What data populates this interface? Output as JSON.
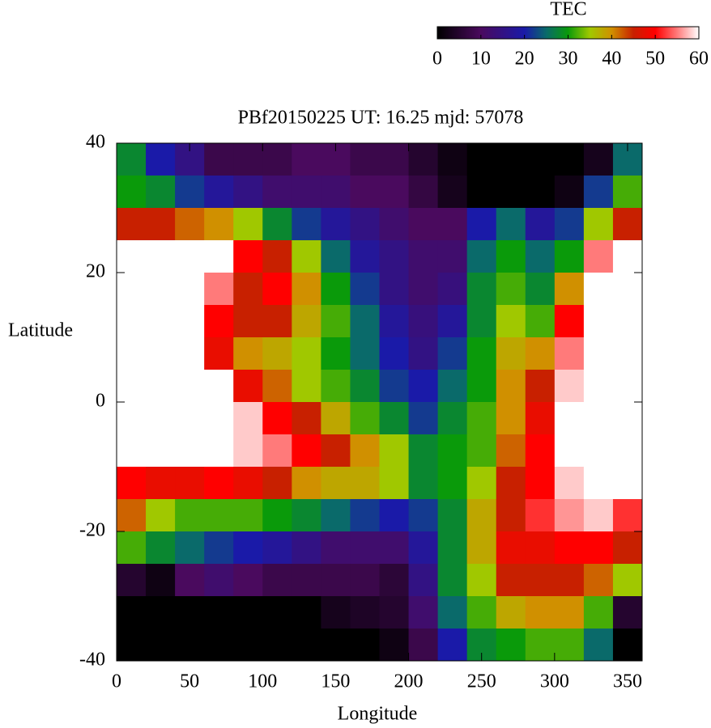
{
  "chart_data": {
    "type": "heatmap",
    "title": "PBf20150225  UT: 16.25  mjd: 57078",
    "x_label": "Longitude",
    "y_label": "Latitude",
    "colorbar_label": "TEC",
    "xlim": [
      0,
      360
    ],
    "ylim": [
      -40,
      40
    ],
    "xticks": [
      0,
      50,
      100,
      150,
      200,
      250,
      300,
      350
    ],
    "yticks": [
      -40,
      -20,
      0,
      20,
      40
    ],
    "clim": [
      0,
      60
    ],
    "cticks": [
      0,
      10,
      20,
      30,
      40,
      50,
      60
    ],
    "colorscale": [
      [
        0,
        "#000000"
      ],
      [
        10,
        "#4a0a5e"
      ],
      [
        20,
        "#1a1aa8"
      ],
      [
        25,
        "#0a6a6a"
      ],
      [
        30,
        "#0a9a0a"
      ],
      [
        35,
        "#a0c800"
      ],
      [
        40,
        "#d09000"
      ],
      [
        45,
        "#c82000"
      ],
      [
        50,
        "#ff0000"
      ],
      [
        55,
        "#ff7a7a"
      ],
      [
        60,
        "#ffffff"
      ]
    ],
    "x": [
      10,
      30,
      50,
      70,
      90,
      110,
      130,
      150,
      170,
      190,
      210,
      230,
      250,
      270,
      290,
      310,
      330,
      350
    ],
    "y": [
      37.5,
      32.5,
      27.5,
      22.5,
      17.5,
      12.5,
      7.5,
      2.5,
      -2.5,
      -7.5,
      -12.5,
      -17.5,
      -22.5,
      -27.5,
      -32.5,
      -37.5
    ],
    "z": [
      [
        28,
        20,
        15,
        8,
        8,
        8,
        10,
        10,
        8,
        8,
        5,
        2,
        0,
        0,
        0,
        0,
        3,
        25
      ],
      [
        30,
        28,
        22,
        18,
        15,
        12,
        12,
        12,
        10,
        10,
        7,
        3,
        0,
        0,
        0,
        2,
        22,
        32
      ],
      [
        45,
        45,
        42,
        40,
        35,
        28,
        22,
        18,
        15,
        12,
        10,
        10,
        20,
        25,
        18,
        22,
        35,
        45
      ],
      [
        60,
        60,
        60,
        60,
        50,
        45,
        35,
        25,
        18,
        15,
        12,
        12,
        25,
        30,
        25,
        30,
        55,
        60
      ],
      [
        60,
        60,
        60,
        55,
        45,
        50,
        40,
        30,
        22,
        15,
        12,
        14,
        28,
        32,
        28,
        40,
        60,
        60
      ],
      [
        60,
        60,
        60,
        50,
        45,
        45,
        38,
        32,
        25,
        18,
        14,
        18,
        28,
        35,
        32,
        50,
        60,
        60
      ],
      [
        60,
        60,
        60,
        48,
        40,
        38,
        35,
        30,
        25,
        20,
        15,
        22,
        30,
        38,
        40,
        55,
        60,
        60
      ],
      [
        60,
        60,
        60,
        60,
        48,
        42,
        35,
        32,
        28,
        22,
        20,
        25,
        30,
        40,
        45,
        58,
        60,
        60
      ],
      [
        60,
        60,
        60,
        60,
        58,
        50,
        45,
        38,
        32,
        28,
        22,
        28,
        32,
        40,
        48,
        60,
        60,
        60
      ],
      [
        60,
        60,
        60,
        60,
        58,
        55,
        50,
        45,
        40,
        35,
        28,
        30,
        32,
        42,
        50,
        60,
        60,
        60
      ],
      [
        50,
        48,
        48,
        50,
        48,
        45,
        40,
        38,
        38,
        35,
        28,
        30,
        35,
        45,
        50,
        58,
        60,
        60
      ],
      [
        42,
        35,
        32,
        32,
        32,
        30,
        28,
        25,
        22,
        20,
        22,
        28,
        38,
        45,
        52,
        56,
        58,
        52
      ],
      [
        32,
        28,
        25,
        22,
        20,
        18,
        15,
        12,
        12,
        12,
        18,
        28,
        38,
        48,
        48,
        50,
        50,
        45
      ],
      [
        5,
        2,
        10,
        12,
        10,
        8,
        8,
        8,
        8,
        6,
        15,
        28,
        35,
        45,
        45,
        45,
        42,
        35
      ],
      [
        0,
        0,
        0,
        0,
        0,
        0,
        0,
        3,
        4,
        5,
        12,
        25,
        32,
        38,
        40,
        40,
        32,
        5
      ],
      [
        0,
        0,
        0,
        0,
        0,
        0,
        0,
        0,
        0,
        2,
        8,
        20,
        28,
        30,
        32,
        32,
        25,
        0
      ]
    ]
  }
}
